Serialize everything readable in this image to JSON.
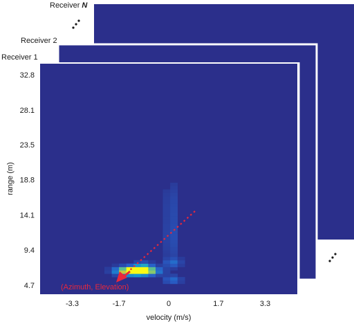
{
  "receivers": [
    {
      "label": "Receiver 1"
    },
    {
      "label": "Receiver 2"
    },
    {
      "label": "Receiver",
      "symbol": "N"
    }
  ],
  "colors": {
    "background": "#2b2f8b",
    "frame_border": "#ffffff",
    "annotation": "#e8283c",
    "axis_text": "#1a1a1a"
  },
  "chart_data": {
    "type": "heatmap",
    "xlabel": "velocity (m/s)",
    "ylabel": "range (m)",
    "x_ticks": [
      "-3.3",
      "-1.7",
      "0",
      "1.7",
      "3.3"
    ],
    "x_tick_values": [
      -3.3,
      -1.7,
      0,
      1.7,
      3.3
    ],
    "y_ticks": [
      "32.8",
      "28.1",
      "23.5",
      "18.8",
      "14.1",
      "9.4",
      "4.7"
    ],
    "y_tick_values": [
      32.8,
      28.1,
      23.5,
      18.8,
      14.1,
      9.4,
      4.7
    ],
    "xlim": [
      -4.4,
      4.4
    ],
    "ylim": [
      3.5,
      34.3
    ],
    "grid": false,
    "annotation": "(Azimuth, Elevation)",
    "hotspots": [
      {
        "velocity": -1.2,
        "range": 6.4,
        "intensity": 1.0
      },
      {
        "velocity": -1.6,
        "range": 6.4,
        "intensity": 0.7
      },
      {
        "velocity": -0.8,
        "range": 6.4,
        "intensity": 0.6
      },
      {
        "velocity": -1.0,
        "range": 7.1,
        "intensity": 0.35
      },
      {
        "velocity": 0.0,
        "range": 5.2,
        "intensity": 0.3
      },
      {
        "velocity": 0.0,
        "range": 7.5,
        "intensity": 0.25
      },
      {
        "velocity": 0.0,
        "range": 10.5,
        "intensity": 0.15
      },
      {
        "velocity": 0.0,
        "range": 15.5,
        "intensity": 0.12
      }
    ]
  }
}
